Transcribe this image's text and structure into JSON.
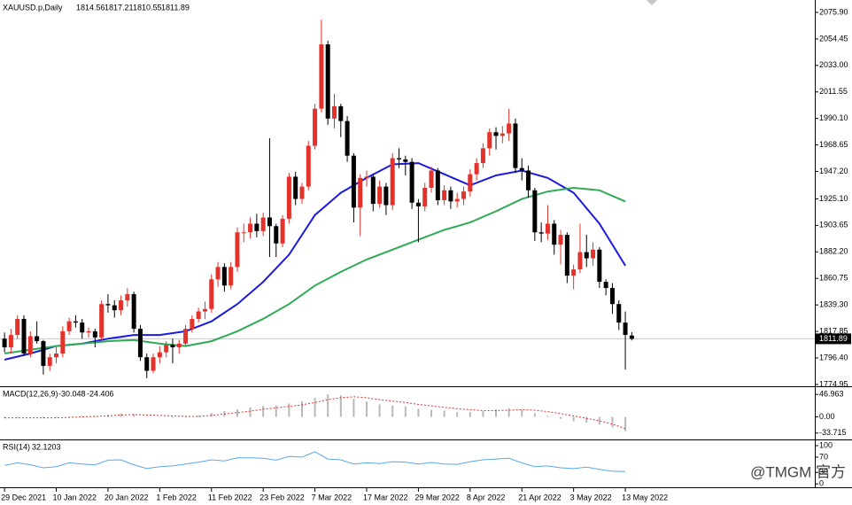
{
  "chart_data": [
    {
      "type": "candlestick",
      "title": "XAUUSD.p,Daily",
      "up_color": "#e3322b",
      "down_color": "#000000",
      "open": [
        1812,
        1805,
        1815,
        1828,
        1800,
        1814,
        1810,
        1790,
        1797,
        1800,
        1818,
        1826,
        1825,
        1817,
        1818,
        1813,
        1840,
        1839,
        1835,
        1843,
        1848,
        1820,
        1797,
        1786,
        1797,
        1801,
        1807,
        1805,
        1808,
        1820,
        1828,
        1834,
        1836,
        1860,
        1870,
        1855,
        1870,
        1898,
        1898,
        1905,
        1899,
        1910,
        1903,
        1889,
        1909,
        1943,
        1925,
        1935,
        1968,
        1998,
        2050,
        1990,
        2000,
        1988,
        1960,
        1918,
        1942,
        1943,
        1921,
        1935,
        1920,
        1958,
        1957,
        1955,
        1922,
        1919,
        1934,
        1948,
        1924,
        1932,
        1923,
        1925,
        1931,
        1945,
        1954,
        1966,
        1979,
        1976,
        1978,
        1986,
        1950,
        1948,
        1932,
        1898,
        1897,
        1905,
        1888,
        1896,
        1863,
        1868,
        1882,
        1877,
        1884,
        1858,
        1853,
        1840,
        1825,
        1814.56
      ],
      "high": [
        1817,
        1820,
        1831,
        1831,
        1818,
        1826,
        1811,
        1800,
        1805,
        1822,
        1829,
        1831,
        1828,
        1821,
        1820,
        1843,
        1848,
        1843,
        1847,
        1853,
        1850,
        1823,
        1800,
        1800,
        1806,
        1810,
        1812,
        1811,
        1823,
        1831,
        1837,
        1842,
        1864,
        1874,
        1873,
        1874,
        1902,
        1905,
        1910,
        1913,
        1914,
        1974,
        1905,
        1912,
        1946,
        1947,
        1938,
        1972,
        2002,
        2070,
        2053,
        2010,
        2002,
        1992,
        1962,
        1945,
        1948,
        1945,
        1940,
        1938,
        1962,
        1966,
        1960,
        1958,
        1925,
        1938,
        1951,
        1950,
        1936,
        1935,
        1930,
        1935,
        1949,
        1958,
        1970,
        1982,
        1983,
        1984,
        1998,
        1990,
        1958,
        1952,
        1934,
        1906,
        1920,
        1908,
        1900,
        1898,
        1872,
        1905,
        1896,
        1890,
        1886,
        1860,
        1857,
        1843,
        1834,
        1817.21
      ],
      "low": [
        1801,
        1800,
        1812,
        1798,
        1797,
        1808,
        1783,
        1786,
        1792,
        1797,
        1815,
        1821,
        1812,
        1813,
        1805,
        1811,
        1833,
        1829,
        1831,
        1838,
        1817,
        1794,
        1780,
        1784,
        1792,
        1797,
        1792,
        1800,
        1806,
        1817,
        1825,
        1828,
        1833,
        1854,
        1850,
        1852,
        1866,
        1890,
        1893,
        1894,
        1895,
        1878,
        1878,
        1886,
        1905,
        1920,
        1921,
        1932,
        1965,
        1995,
        1985,
        1982,
        1975,
        1955,
        1906,
        1895,
        1935,
        1915,
        1918,
        1912,
        1916,
        1950,
        1944,
        1917,
        1890,
        1915,
        1930,
        1920,
        1920,
        1917,
        1918,
        1920,
        1927,
        1940,
        1950,
        1960,
        1965,
        1970,
        1972,
        1946,
        1940,
        1926,
        1891,
        1890,
        1892,
        1880,
        1872,
        1857,
        1852,
        1865,
        1870,
        1871,
        1853,
        1847,
        1832,
        1819,
        1787,
        1810.55
      ],
      "close": [
        1805,
        1815,
        1828,
        1800,
        1814,
        1810,
        1790,
        1797,
        1800,
        1818,
        1826,
        1825,
        1817,
        1818,
        1813,
        1840,
        1839,
        1835,
        1843,
        1848,
        1820,
        1797,
        1786,
        1797,
        1801,
        1807,
        1805,
        1808,
        1820,
        1828,
        1834,
        1836,
        1860,
        1870,
        1855,
        1870,
        1898,
        1898,
        1905,
        1899,
        1910,
        1903,
        1889,
        1909,
        1943,
        1925,
        1935,
        1968,
        1998,
        2050,
        1990,
        2000,
        1988,
        1960,
        1918,
        1942,
        1943,
        1921,
        1935,
        1920,
        1958,
        1957,
        1955,
        1922,
        1919,
        1934,
        1948,
        1924,
        1932,
        1923,
        1925,
        1931,
        1945,
        1954,
        1966,
        1979,
        1976,
        1978,
        1986,
        1950,
        1948,
        1932,
        1898,
        1897,
        1905,
        1888,
        1896,
        1863,
        1868,
        1882,
        1877,
        1884,
        1858,
        1853,
        1840,
        1825,
        1815,
        1811.89
      ],
      "moving_averages": [
        {
          "color": "#1a1ae0",
          "x": [
            0,
            4,
            8,
            12,
            16,
            20,
            24,
            28,
            32,
            36,
            40,
            44,
            48,
            52,
            56,
            60,
            64,
            68,
            72,
            76,
            80,
            84,
            88,
            92,
            96
          ],
          "values": [
            1795,
            1800,
            1806,
            1808,
            1812,
            1815,
            1815,
            1818,
            1826,
            1840,
            1858,
            1880,
            1912,
            1930,
            1942,
            1953,
            1954,
            1945,
            1936,
            1944,
            1948,
            1942,
            1930,
            1905,
            1871
          ]
        },
        {
          "color": "#2eaa55",
          "x": [
            0,
            4,
            8,
            12,
            16,
            20,
            24,
            28,
            32,
            36,
            40,
            44,
            48,
            52,
            56,
            60,
            64,
            68,
            72,
            76,
            80,
            84,
            88,
            92,
            96
          ],
          "values": [
            1800,
            1803,
            1806,
            1808,
            1810,
            1811,
            1808,
            1806,
            1810,
            1818,
            1828,
            1840,
            1855,
            1866,
            1876,
            1884,
            1892,
            1900,
            1906,
            1915,
            1925,
            1931,
            1934,
            1932,
            1923
          ]
        }
      ],
      "xlim": [
        -0.7,
        125.3
      ],
      "ylim": [
        1773.5,
        2085.9
      ],
      "yticks": [
        {
          "value": 2075.9,
          "label": "2075.90"
        },
        {
          "value": 2054.45,
          "label": "2054.45"
        },
        {
          "value": 2033,
          "label": "2033.00"
        },
        {
          "value": 2011.55,
          "label": "2011.55"
        },
        {
          "value": 1990.1,
          "label": "1990.10"
        },
        {
          "value": 1968.65,
          "label": "1968.65"
        },
        {
          "value": 1947.2,
          "label": "1947.20"
        },
        {
          "value": 1925.1,
          "label": "1925.10"
        },
        {
          "value": 1903.65,
          "label": "1903.65"
        },
        {
          "value": 1882.2,
          "label": "1882.20"
        },
        {
          "value": 1860.75,
          "label": "1860.75"
        },
        {
          "value": 1839.3,
          "label": "1839.30"
        },
        {
          "value": 1817.85,
          "label": "1817.85"
        },
        {
          "value": 1796.4,
          "label": "1796.40"
        },
        {
          "value": 1774.95,
          "label": "1774.95"
        }
      ],
      "xticks": [
        {
          "value": 0,
          "label": "29 Dec 2021"
        },
        {
          "value": 8,
          "label": "10 Jan 2022"
        },
        {
          "value": 16,
          "label": "20 Jan 2022"
        },
        {
          "value": 24,
          "label": "1 Feb 2022"
        },
        {
          "value": 32,
          "label": "11 Feb 2022"
        },
        {
          "value": 40,
          "label": "23 Feb 2022"
        },
        {
          "value": 48,
          "label": "7 Mar 2022"
        },
        {
          "value": 56,
          "label": "17 Mar 2022"
        },
        {
          "value": 64,
          "label": "29 Mar 2022"
        },
        {
          "value": 72,
          "label": "8 Apr 2022"
        },
        {
          "value": 80,
          "label": "21 Apr 2022"
        },
        {
          "value": 88,
          "label": "3 May 2022"
        },
        {
          "value": 96,
          "label": "13 May 2022"
        }
      ]
    },
    {
      "type": "macd",
      "title": "MACD(12,26,9)",
      "histogram_color": "#b8b8b8",
      "signal_color": "#e03030",
      "x": [
        0,
        2,
        4,
        6,
        8,
        10,
        12,
        14,
        16,
        18,
        20,
        22,
        24,
        26,
        28,
        30,
        32,
        34,
        36,
        38,
        40,
        42,
        44,
        46,
        48,
        50,
        52,
        54,
        56,
        58,
        60,
        62,
        64,
        66,
        68,
        70,
        72,
        74,
        76,
        78,
        80,
        82,
        84,
        86,
        88,
        90,
        92,
        94,
        96
      ],
      "histogram": [
        -3,
        -2,
        -1,
        -3,
        -2,
        1,
        2,
        2,
        5,
        7,
        6,
        1,
        -1,
        -2,
        0,
        3,
        8,
        12,
        16,
        20,
        23,
        24,
        28,
        33,
        40,
        47,
        45,
        38,
        32,
        26,
        24,
        22,
        17,
        15,
        13,
        10,
        10,
        12,
        16,
        18,
        15,
        8,
        2,
        -4,
        -9,
        -12,
        -16,
        -22,
        -30.048
      ],
      "signal": [
        -2,
        -2,
        -2,
        -2,
        -2,
        -1,
        0,
        1,
        2,
        4,
        5,
        4,
        3,
        2,
        1,
        1,
        3,
        6,
        9,
        12,
        16,
        19,
        22,
        25,
        30,
        36,
        40,
        42,
        40,
        36,
        33,
        30,
        26,
        23,
        20,
        17,
        15,
        13,
        13,
        14,
        15,
        14,
        11,
        7,
        2,
        -3,
        -8,
        -15,
        -24.406
      ],
      "ylim": [
        -47,
        62
      ],
      "yticks": [
        46.963,
        {
          "value": 0,
          "label": "0.00"
        },
        -33.715
      ]
    },
    {
      "type": "line",
      "title": "RSI(14)",
      "color": "#5aa8e8",
      "x": [
        0,
        2,
        4,
        6,
        8,
        10,
        12,
        14,
        16,
        18,
        20,
        22,
        24,
        26,
        28,
        30,
        32,
        34,
        36,
        38,
        40,
        42,
        44,
        46,
        48,
        50,
        52,
        54,
        56,
        58,
        60,
        62,
        64,
        66,
        68,
        70,
        72,
        74,
        76,
        78,
        80,
        82,
        84,
        86,
        88,
        90,
        92,
        94,
        96
      ],
      "values": [
        48,
        55,
        50,
        42,
        45,
        55,
        52,
        50,
        62,
        63,
        50,
        40,
        45,
        47,
        52,
        57,
        63,
        60,
        68,
        68,
        67,
        62,
        72,
        70,
        84,
        65,
        63,
        52,
        55,
        53,
        58,
        57,
        52,
        56,
        52,
        51,
        58,
        63,
        65,
        67,
        55,
        45,
        47,
        42,
        40,
        44,
        38,
        33,
        32.1203
      ],
      "ylim": [
        -9,
        114
      ],
      "yticks": [
        100,
        70,
        30,
        0
      ]
    }
  ],
  "watermark": "@TMGM 官方"
}
